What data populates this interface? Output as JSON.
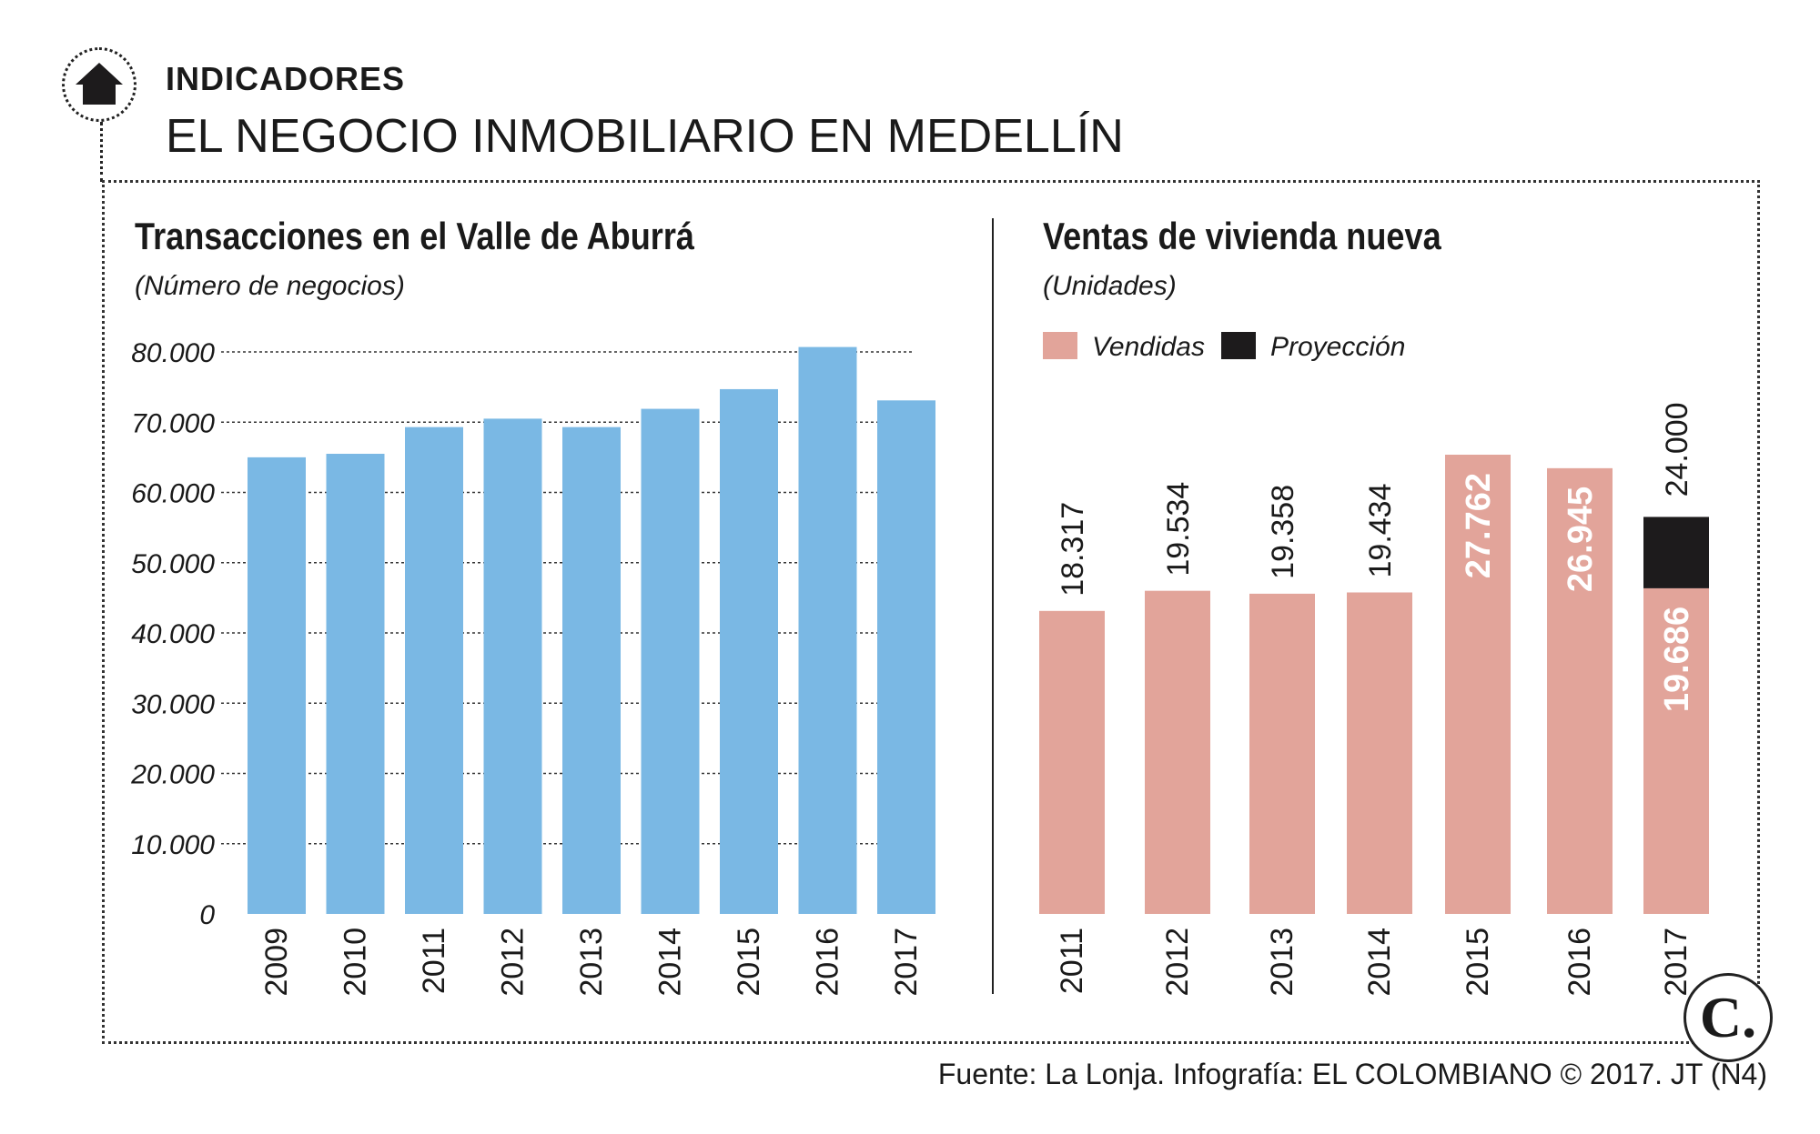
{
  "header": {
    "kicker": "INDICADORES",
    "title": "EL NEGOCIO INMOBILIARIO EN MEDELLÍN"
  },
  "source": "Fuente: La Lonja. Infografía: EL COLOMBIANO © 2017. JT (N4)",
  "logo_text": "C.",
  "colors": {
    "blue_bar": "#7ab8e4",
    "pink_bar": "#e2a49a",
    "projection": "#1d1b1c",
    "text": "#1a1a1a"
  },
  "chart_data": [
    {
      "type": "bar",
      "title": "Transacciones en el Valle de Aburrá",
      "subtitle": "(Número de negocios)",
      "categories": [
        "2009",
        "2010",
        "2011",
        "2012",
        "2013",
        "2014",
        "2015",
        "2016",
        "2017"
      ],
      "values": [
        65000,
        65500,
        69300,
        70500,
        69300,
        71900,
        74700,
        80700,
        73100
      ],
      "ylim": [
        0,
        80000
      ],
      "yticks": [
        0,
        10000,
        20000,
        30000,
        40000,
        50000,
        60000,
        70000,
        80000
      ],
      "ytick_labels": [
        "0",
        "10.000",
        "20.000",
        "30.000",
        "40.000",
        "50.000",
        "60.000",
        "70.000",
        "80.000"
      ],
      "grid": true,
      "xlabel": "",
      "ylabel": ""
    },
    {
      "type": "bar",
      "stacked": true,
      "title": "Ventas de vivienda nueva",
      "subtitle": "(Unidades)",
      "categories": [
        "2011",
        "2012",
        "2013",
        "2014",
        "2015",
        "2016",
        "2017"
      ],
      "legend": [
        {
          "name": "Vendidas",
          "color": "#e2a49a"
        },
        {
          "name": "Proyección",
          "color": "#1d1b1c"
        }
      ],
      "legend_position": "top-left",
      "series": [
        {
          "name": "Vendidas",
          "values": [
            18317,
            19534,
            19358,
            19434,
            27762,
            26945,
            19686
          ]
        },
        {
          "name": "Proyección",
          "values": [
            0,
            0,
            0,
            0,
            0,
            0,
            4314
          ]
        }
      ],
      "data_labels": [
        "18.317",
        "19.534",
        "19.358",
        "19.434",
        "27.762",
        "26.945",
        "19.686"
      ],
      "total_label_2017": "24.000",
      "ylim": [
        0,
        30000
      ],
      "grid": false
    }
  ]
}
